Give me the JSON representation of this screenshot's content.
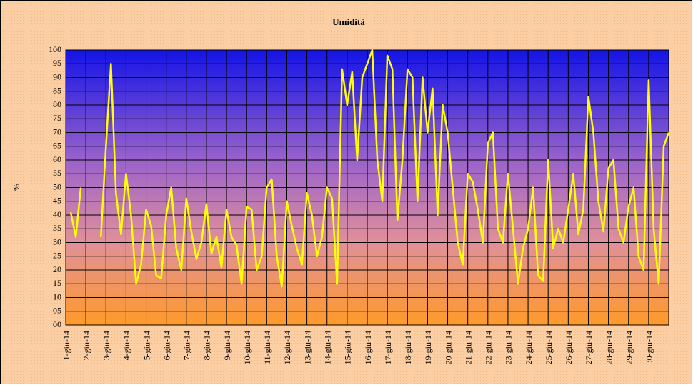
{
  "chart_data": {
    "type": "line",
    "title": "Umidità",
    "y_label": "%",
    "categories": [
      "1-giu-14",
      null,
      null,
      null,
      "2-giu-14",
      null,
      null,
      null,
      "3-giu-14",
      null,
      null,
      null,
      "4-giu-14",
      null,
      null,
      null,
      "5-giu-14",
      null,
      null,
      null,
      "6-giu-14",
      null,
      null,
      null,
      "7-giu-14",
      null,
      null,
      null,
      "8-giu-14",
      null,
      null,
      null,
      "9-giu-14",
      null,
      null,
      null,
      "10-giu-14",
      null,
      null,
      null,
      "11-giu-14",
      null,
      null,
      null,
      "12-giu-14",
      null,
      null,
      null,
      "13-giu-14",
      null,
      null,
      null,
      "14-giu-14",
      null,
      null,
      null,
      "15-giu-14",
      null,
      null,
      null,
      "16-giu-14",
      null,
      null,
      null,
      "17-giu-14",
      null,
      null,
      null,
      "18-giu-14",
      null,
      null,
      null,
      "19-giu-14",
      null,
      null,
      null,
      "20-giu-14",
      null,
      null,
      null,
      "21-giu-14",
      null,
      null,
      null,
      "22-giu-14",
      null,
      null,
      null,
      "23-giu-14",
      null,
      null,
      null,
      "24-giu-14",
      null,
      null,
      null,
      "25-giu-14",
      null,
      null,
      null,
      "26-giu-14",
      null,
      null,
      null,
      "27-giu-14",
      null,
      null,
      null,
      "28-giu-14",
      null,
      null,
      null,
      "29-giu-14",
      null,
      null,
      null,
      "30-giu-14",
      null,
      null,
      null,
      null
    ],
    "series": [
      {
        "name": "Umidità",
        "color": "#ffff00",
        "values": [
          null,
          41,
          32,
          50,
          null,
          null,
          null,
          32,
          65,
          95,
          48,
          33,
          55,
          40,
          15,
          22,
          42,
          36,
          18,
          17,
          40,
          50,
          28,
          20,
          46,
          34,
          24,
          30,
          44,
          26,
          32,
          21,
          42,
          32,
          29,
          15,
          43,
          42,
          20,
          25,
          50,
          53,
          25,
          14,
          45,
          36,
          28,
          22,
          48,
          40,
          25,
          32,
          50,
          46,
          15,
          93,
          80,
          92,
          60,
          90,
          95,
          100,
          60,
          45,
          98,
          93,
          38,
          60,
          93,
          90,
          45,
          90,
          70,
          86,
          40,
          80,
          70,
          50,
          30,
          22,
          55,
          52,
          42,
          30,
          66,
          70,
          35,
          30,
          55,
          35,
          15,
          28,
          35,
          50,
          18,
          16,
          60,
          28,
          35,
          30,
          42,
          55,
          33,
          42,
          83,
          70,
          45,
          34,
          57,
          60,
          35,
          30,
          43,
          50,
          25,
          20,
          89,
          35,
          15,
          65,
          70
        ]
      }
    ],
    "ylim": [
      0,
      100
    ],
    "yticks": [
      {
        "value": 0,
        "label": "00"
      },
      {
        "value": 5,
        "label": "05"
      },
      10,
      15,
      20,
      25,
      30,
      35,
      40,
      45,
      50,
      55,
      60,
      65,
      70,
      75,
      80,
      85,
      90,
      95,
      100
    ],
    "grid": true
  }
}
